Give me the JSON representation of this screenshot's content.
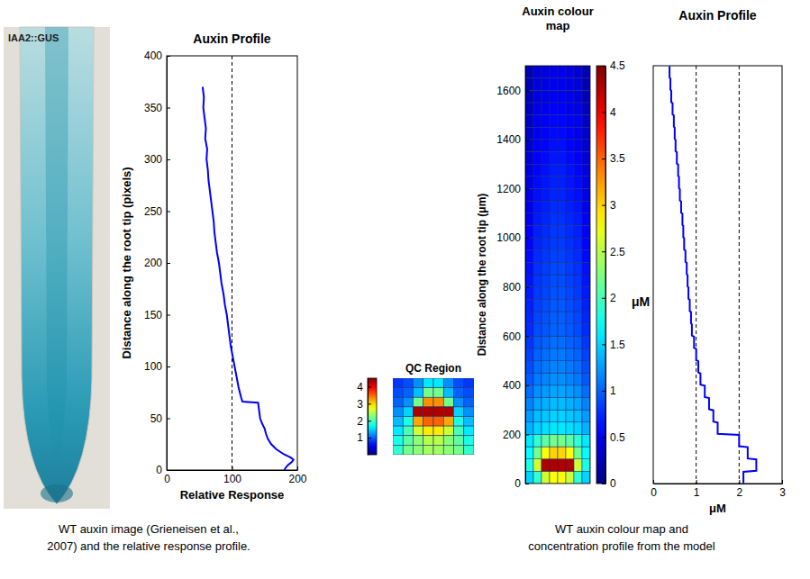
{
  "chart_data": [
    {
      "type": "image",
      "label": "IAA2::GUS"
    },
    {
      "type": "line",
      "title": "Auxin Profile",
      "xlabel": "Relative Response",
      "ylabel": "Distance along the root tip (pixels)",
      "xlim": [
        0,
        200
      ],
      "xticks": [
        0,
        100,
        200
      ],
      "ylim": [
        0,
        400
      ],
      "yticks": [
        0,
        50,
        100,
        150,
        200,
        250,
        300,
        350,
        400
      ],
      "reference_x": [
        100
      ],
      "series": [
        {
          "color": "#0000ff",
          "x": [
            55,
            57,
            56,
            58,
            60,
            59,
            62,
            61,
            63,
            64,
            66,
            68,
            70,
            72,
            73,
            75,
            77,
            80,
            82,
            84,
            87,
            89,
            92,
            94,
            96,
            98,
            101,
            104,
            107,
            110,
            114,
            116,
            140,
            141,
            142,
            143,
            146,
            150,
            152,
            155,
            160,
            168,
            180,
            190,
            194,
            192,
            186,
            183,
            180
          ],
          "values": [
            370,
            360,
            350,
            340,
            330,
            320,
            310,
            300,
            290,
            280,
            270,
            260,
            250,
            240,
            230,
            220,
            210,
            200,
            190,
            180,
            170,
            160,
            150,
            140,
            130,
            120,
            110,
            100,
            90,
            80,
            70,
            66,
            65,
            60,
            55,
            50,
            45,
            40,
            35,
            30,
            25,
            20,
            15,
            12,
            10,
            8,
            5,
            3,
            0
          ]
        }
      ]
    },
    {
      "type": "heatmap",
      "title": "QC Region",
      "cells": [
        [
          0.8,
          0.9,
          1.2,
          1.6,
          1.6,
          1.2,
          0.9,
          0.8
        ],
        [
          0.9,
          1.0,
          1.4,
          2.2,
          2.2,
          1.4,
          1.0,
          0.9
        ],
        [
          1.0,
          1.2,
          2.2,
          3.3,
          3.3,
          2.2,
          1.2,
          1.0
        ],
        [
          1.2,
          1.5,
          4.3,
          4.3,
          4.3,
          4.3,
          1.5,
          1.2
        ],
        [
          1.4,
          1.8,
          3.2,
          3.5,
          3.5,
          3.2,
          1.8,
          1.4
        ],
        [
          1.6,
          2.0,
          2.6,
          2.9,
          2.9,
          2.6,
          2.0,
          1.6
        ],
        [
          1.8,
          2.1,
          2.3,
          2.5,
          2.5,
          2.3,
          2.1,
          1.8
        ],
        [
          1.9,
          2.2,
          2.3,
          2.4,
          2.4,
          2.3,
          2.2,
          1.9
        ]
      ],
      "colorbar": {
        "range": [
          0,
          4.5
        ],
        "ticks": [
          1,
          2,
          3,
          4
        ]
      }
    },
    {
      "type": "heatmap",
      "title": "Auxin colour map",
      "ylabel": "Distance along the root tip (μm)",
      "ylim": [
        0,
        1700
      ],
      "yticks": [
        0,
        200,
        400,
        600,
        800,
        1000,
        1200,
        1400,
        1600
      ],
      "tick_labels": "y",
      "y_edges": [
        0,
        50,
        100,
        150,
        200,
        250,
        300,
        350,
        400,
        450,
        500,
        550,
        600,
        650,
        700,
        750,
        800,
        850,
        900,
        950,
        1000,
        1050,
        1100,
        1150,
        1200,
        1250,
        1300,
        1350,
        1400,
        1450,
        1500,
        1550,
        1600,
        1650,
        1700
      ],
      "cells": [
        [
          1.5,
          1.9,
          2.6,
          2.8,
          2.8,
          2.6,
          1.9,
          1.5
        ],
        [
          1.8,
          2.6,
          4.3,
          4.3,
          4.3,
          4.3,
          2.6,
          1.8
        ],
        [
          1.7,
          2.2,
          2.8,
          3.0,
          3.0,
          2.8,
          2.2,
          1.7
        ],
        [
          1.6,
          1.9,
          2.1,
          2.2,
          2.2,
          2.1,
          1.9,
          1.6
        ],
        [
          1.35,
          1.5,
          1.55,
          1.6,
          1.6,
          1.55,
          1.5,
          1.35
        ],
        [
          1.25,
          1.4,
          1.45,
          1.5,
          1.5,
          1.45,
          1.4,
          1.25
        ],
        [
          1.15,
          1.3,
          1.35,
          1.4,
          1.4,
          1.35,
          1.3,
          1.15
        ],
        [
          1.05,
          1.2,
          1.25,
          1.3,
          1.3,
          1.25,
          1.2,
          1.05
        ],
        [
          0.95,
          1.1,
          1.15,
          1.2,
          1.2,
          1.15,
          1.1,
          0.95
        ],
        [
          0.9,
          1.05,
          1.1,
          1.15,
          1.15,
          1.1,
          1.05,
          0.9
        ],
        [
          0.85,
          1,
          1.05,
          1.1,
          1.1,
          1.05,
          1,
          0.85
        ],
        [
          0.8,
          0.95,
          1,
          1.05,
          1.05,
          1,
          0.95,
          0.8
        ],
        [
          0.75,
          0.9,
          0.95,
          1,
          1,
          0.95,
          0.9,
          0.75
        ],
        [
          0.73,
          0.88,
          0.93,
          0.98,
          0.98,
          0.93,
          0.88,
          0.73
        ],
        [
          0.7,
          0.85,
          0.9,
          0.95,
          0.95,
          0.9,
          0.85,
          0.7
        ],
        [
          0.67,
          0.82,
          0.87,
          0.92,
          0.92,
          0.87,
          0.82,
          0.67
        ],
        [
          0.65,
          0.8,
          0.85,
          0.9,
          0.9,
          0.85,
          0.8,
          0.65
        ],
        [
          0.63,
          0.78,
          0.83,
          0.88,
          0.88,
          0.83,
          0.78,
          0.63
        ],
        [
          0.6,
          0.75,
          0.8,
          0.85,
          0.85,
          0.8,
          0.75,
          0.6
        ],
        [
          0.57,
          0.72,
          0.77,
          0.82,
          0.82,
          0.77,
          0.72,
          0.57
        ],
        [
          0.55,
          0.7,
          0.75,
          0.8,
          0.8,
          0.75,
          0.7,
          0.55
        ],
        [
          0.53,
          0.68,
          0.73,
          0.78,
          0.78,
          0.73,
          0.68,
          0.53
        ],
        [
          0.5,
          0.65,
          0.7,
          0.75,
          0.75,
          0.7,
          0.65,
          0.5
        ],
        [
          0.47,
          0.62,
          0.67,
          0.72,
          0.72,
          0.67,
          0.62,
          0.47
        ],
        [
          0.45,
          0.6,
          0.65,
          0.7,
          0.7,
          0.65,
          0.6,
          0.45
        ],
        [
          0.43,
          0.58,
          0.63,
          0.68,
          0.68,
          0.63,
          0.58,
          0.43
        ],
        [
          0.4,
          0.55,
          0.6,
          0.65,
          0.65,
          0.6,
          0.55,
          0.4
        ],
        [
          0.37,
          0.52,
          0.57,
          0.62,
          0.62,
          0.57,
          0.52,
          0.37
        ],
        [
          0.35,
          0.5,
          0.55,
          0.6,
          0.6,
          0.55,
          0.5,
          0.35
        ],
        [
          0.33,
          0.48,
          0.53,
          0.58,
          0.58,
          0.53,
          0.48,
          0.33
        ],
        [
          0.3,
          0.45,
          0.5,
          0.55,
          0.55,
          0.5,
          0.45,
          0.3
        ],
        [
          0.27,
          0.42,
          0.47,
          0.52,
          0.52,
          0.47,
          0.42,
          0.27
        ],
        [
          0.25,
          0.4,
          0.45,
          0.5,
          0.5,
          0.45,
          0.4,
          0.25
        ],
        [
          0.23,
          0.38,
          0.43,
          0.48,
          0.48,
          0.43,
          0.38,
          0.23
        ]
      ],
      "colorbar": {
        "range": [
          0,
          4.5
        ],
        "ticks": [
          0,
          0.5,
          1,
          1.5,
          2,
          2.5,
          3,
          3.5,
          4,
          4.5
        ],
        "label": "μM"
      }
    },
    {
      "type": "line",
      "title": "Auxin Profile",
      "xlabel": "μM",
      "xlim": [
        0,
        3
      ],
      "xticks": [
        0,
        1,
        2,
        3
      ],
      "ylim": [
        0,
        1700
      ],
      "tick_labels": "x",
      "reference_x": [
        1,
        2
      ],
      "series": [
        {
          "color": "#0000ff",
          "x": [
            2.1,
            2.1,
            2.4,
            2.4,
            2.2,
            2.2,
            2.0,
            2.0,
            1.5,
            1.5,
            1.4,
            1.4,
            1.3,
            1.3,
            1.2,
            1.2,
            1.1,
            1.1,
            1.05,
            1.05,
            1.0,
            1.0,
            0.95,
            0.95,
            0.9,
            0.9,
            0.88,
            0.88,
            0.85,
            0.85,
            0.82,
            0.82,
            0.8,
            0.8,
            0.78,
            0.78,
            0.75,
            0.75,
            0.72,
            0.72,
            0.7,
            0.7,
            0.68,
            0.68,
            0.65,
            0.65,
            0.62,
            0.62,
            0.6,
            0.6,
            0.58,
            0.58,
            0.55,
            0.55,
            0.52,
            0.52,
            0.5,
            0.5,
            0.48,
            0.48,
            0.45,
            0.45,
            0.42,
            0.42,
            0.4,
            0.4,
            0.38,
            0.38
          ],
          "values": [
            2,
            48,
            52,
            98,
            102,
            148,
            152,
            198,
            202,
            248,
            252,
            298,
            302,
            348,
            352,
            398,
            402,
            448,
            452,
            498,
            502,
            548,
            552,
            598,
            602,
            648,
            652,
            698,
            702,
            748,
            752,
            798,
            802,
            848,
            852,
            898,
            902,
            948,
            952,
            998,
            1002,
            1048,
            1052,
            1098,
            1102,
            1148,
            1152,
            1198,
            1202,
            1248,
            1252,
            1298,
            1302,
            1348,
            1352,
            1398,
            1402,
            1448,
            1452,
            1498,
            1502,
            1548,
            1552,
            1598,
            1602,
            1648,
            1652,
            1698
          ]
        }
      ]
    }
  ],
  "captions": [
    [
      "WT auxin image (Grieneisen et al.,",
      "2007) and the relative response profile."
    ],
    [
      "WT auxin colour map and",
      "concentration profile from the model"
    ]
  ]
}
